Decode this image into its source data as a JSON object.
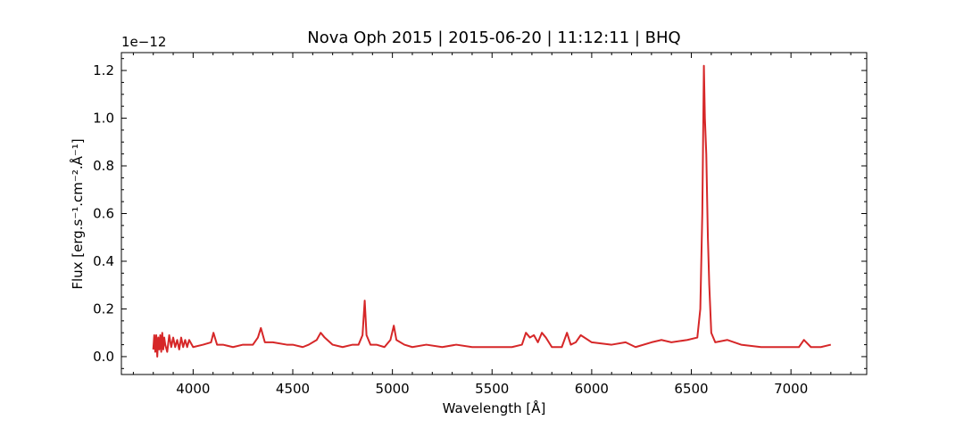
{
  "chart_data": {
    "type": "line",
    "title": "Nova Oph 2015 | 2015-06-20 | 11:12:11 | BHQ",
    "xlabel": "Wavelength [Å]",
    "ylabel": "Flux [erg.s⁻¹.cm⁻².Å⁻¹]",
    "y_offset_label": "1e−12",
    "xlim": [
      3640,
      7380
    ],
    "ylim": [
      -0.075,
      1.275
    ],
    "x_ticks": [
      4000,
      4500,
      5000,
      5500,
      6000,
      6500,
      7000
    ],
    "x_tick_labels": [
      "4000",
      "4500",
      "5000",
      "5500",
      "6000",
      "6500",
      "7000"
    ],
    "y_ticks": [
      0.0,
      0.2,
      0.4,
      0.6,
      0.8,
      1.0,
      1.2
    ],
    "y_tick_labels": [
      "0.0",
      "0.2",
      "0.4",
      "0.6",
      "0.8",
      "1.0",
      "1.2"
    ],
    "grid": false,
    "line_color": "#d62728",
    "x": [
      3800,
      3805,
      3810,
      3815,
      3820,
      3825,
      3830,
      3835,
      3840,
      3845,
      3850,
      3855,
      3860,
      3870,
      3880,
      3890,
      3900,
      3910,
      3920,
      3930,
      3940,
      3950,
      3960,
      3970,
      3980,
      4000,
      4050,
      4090,
      4102,
      4120,
      4150,
      4200,
      4250,
      4300,
      4325,
      4340,
      4360,
      4400,
      4470,
      4500,
      4550,
      4580,
      4620,
      4640,
      4660,
      4700,
      4750,
      4800,
      4830,
      4850,
      4861,
      4870,
      4890,
      4920,
      4960,
      4990,
      5007,
      5020,
      5060,
      5100,
      5170,
      5250,
      5320,
      5400,
      5500,
      5600,
      5650,
      5670,
      5690,
      5710,
      5730,
      5750,
      5770,
      5800,
      5850,
      5876,
      5895,
      5920,
      5945,
      6000,
      6100,
      6170,
      6220,
      6300,
      6350,
      6400,
      6480,
      6530,
      6545,
      6555,
      6563,
      6568,
      6575,
      6583,
      6590,
      6600,
      6620,
      6680,
      6750,
      6850,
      6950,
      7040,
      7065,
      7100,
      7150,
      7200
    ],
    "y": [
      0.03,
      0.09,
      0.02,
      0.09,
      0.0,
      0.08,
      0.03,
      0.09,
      0.02,
      0.1,
      0.03,
      0.08,
      0.05,
      0.02,
      0.09,
      0.04,
      0.08,
      0.04,
      0.07,
      0.03,
      0.08,
      0.04,
      0.07,
      0.04,
      0.07,
      0.04,
      0.05,
      0.06,
      0.1,
      0.05,
      0.05,
      0.04,
      0.05,
      0.05,
      0.08,
      0.12,
      0.06,
      0.06,
      0.05,
      0.05,
      0.04,
      0.05,
      0.07,
      0.1,
      0.08,
      0.05,
      0.04,
      0.05,
      0.05,
      0.09,
      0.235,
      0.09,
      0.05,
      0.05,
      0.04,
      0.07,
      0.13,
      0.07,
      0.05,
      0.04,
      0.05,
      0.04,
      0.05,
      0.04,
      0.04,
      0.04,
      0.05,
      0.1,
      0.08,
      0.09,
      0.06,
      0.1,
      0.08,
      0.04,
      0.04,
      0.1,
      0.05,
      0.06,
      0.09,
      0.06,
      0.05,
      0.06,
      0.04,
      0.06,
      0.07,
      0.06,
      0.07,
      0.08,
      0.2,
      0.6,
      1.22,
      1.0,
      0.85,
      0.5,
      0.3,
      0.1,
      0.06,
      0.07,
      0.05,
      0.04,
      0.04,
      0.04,
      0.07,
      0.04,
      0.04,
      0.05
    ]
  }
}
